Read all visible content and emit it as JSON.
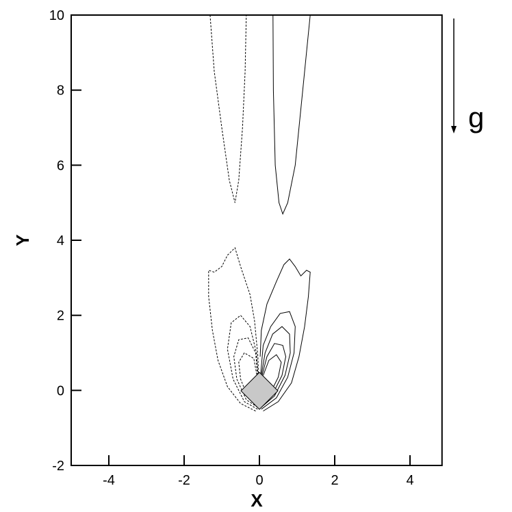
{
  "chart_data": {
    "type": "contour",
    "x_label": "X",
    "y_label": "Y",
    "annotation": "g",
    "xlim": [
      -5,
      4.85
    ],
    "ylim": [
      -2,
      10
    ],
    "xticks": [
      -4,
      -2,
      0,
      2,
      4
    ],
    "yticks": [
      -2,
      0,
      2,
      4,
      6,
      8,
      10
    ],
    "series": [
      {
        "style": "dashed",
        "x": [
          -1.31,
          -1.2,
          -1.0,
          -0.8,
          -0.65,
          -0.55,
          -0.45,
          -0.38,
          -0.35
        ],
        "y": [
          10,
          8.5,
          7,
          5.6,
          5.0,
          5.6,
          7,
          8.5,
          10
        ]
      },
      {
        "style": "solid",
        "x": [
          0.36,
          0.37,
          0.42,
          0.52,
          0.62,
          0.75,
          0.95,
          1.15,
          1.35
        ],
        "y": [
          10,
          8,
          6,
          5.0,
          4.7,
          5.0,
          6,
          8,
          10
        ]
      },
      {
        "style": "dashed",
        "x": [
          -0.1,
          -0.5,
          -0.85,
          -1.1,
          -1.25,
          -1.35,
          -1.35,
          -1.2,
          -1.0,
          -0.85,
          -0.65,
          -0.5,
          -0.25,
          -0.13,
          -0.04,
          -0.02
        ],
        "y": [
          -0.55,
          -0.35,
          0.1,
          0.8,
          1.6,
          2.5,
          3.2,
          3.15,
          3.3,
          3.6,
          3.8,
          3.3,
          2.55,
          1.85,
          0.9,
          0.2
        ]
      },
      {
        "style": "solid",
        "x": [
          0.1,
          0.5,
          0.85,
          1.05,
          1.2,
          1.3,
          1.35,
          1.25,
          1.1,
          0.95,
          0.8,
          0.65,
          0.45,
          0.2,
          0.05,
          0.02
        ],
        "y": [
          -0.55,
          -0.3,
          0.2,
          0.9,
          1.7,
          2.5,
          3.15,
          3.2,
          3.05,
          3.3,
          3.5,
          3.35,
          2.9,
          2.3,
          1.6,
          0.9
        ]
      },
      {
        "style": "dashed",
        "x": [
          -0.05,
          -0.4,
          -0.7,
          -0.85,
          -0.75,
          -0.5,
          -0.25,
          -0.08,
          -0.03
        ],
        "y": [
          -0.5,
          -0.3,
          0.3,
          1.1,
          1.8,
          2.0,
          1.7,
          1.0,
          0.3
        ]
      },
      {
        "style": "dashed",
        "x": [
          -0.05,
          -0.35,
          -0.6,
          -0.68,
          -0.55,
          -0.3,
          -0.1,
          -0.04
        ],
        "y": [
          -0.45,
          -0.25,
          0.3,
          0.9,
          1.35,
          1.4,
          1.0,
          0.3
        ]
      },
      {
        "style": "dashed",
        "x": [
          -0.05,
          -0.3,
          -0.5,
          -0.55,
          -0.4,
          -0.15,
          -0.05
        ],
        "y": [
          -0.4,
          -0.2,
          0.3,
          0.75,
          1.0,
          0.85,
          0.3
        ]
      },
      {
        "style": "solid",
        "x": [
          0.05,
          0.45,
          0.75,
          0.92,
          0.95,
          0.8,
          0.55,
          0.3,
          0.1,
          0.03
        ],
        "y": [
          -0.5,
          -0.2,
          0.35,
          1.0,
          1.7,
          2.1,
          2.05,
          1.7,
          1.2,
          0.4
        ]
      },
      {
        "style": "solid",
        "x": [
          0.05,
          0.4,
          0.68,
          0.82,
          0.8,
          0.6,
          0.35,
          0.15,
          0.05
        ],
        "y": [
          -0.45,
          -0.15,
          0.4,
          1.0,
          1.5,
          1.7,
          1.5,
          1.0,
          0.4
        ]
      },
      {
        "style": "solid",
        "x": [
          0.05,
          0.35,
          0.6,
          0.7,
          0.62,
          0.4,
          0.2,
          0.07
        ],
        "y": [
          -0.4,
          -0.1,
          0.4,
          0.9,
          1.2,
          1.25,
          0.9,
          0.4
        ]
      },
      {
        "style": "solid",
        "x": [
          0.06,
          0.3,
          0.5,
          0.58,
          0.45,
          0.25,
          0.1
        ],
        "y": [
          -0.35,
          -0.05,
          0.35,
          0.75,
          0.95,
          0.8,
          0.4
        ]
      }
    ]
  }
}
